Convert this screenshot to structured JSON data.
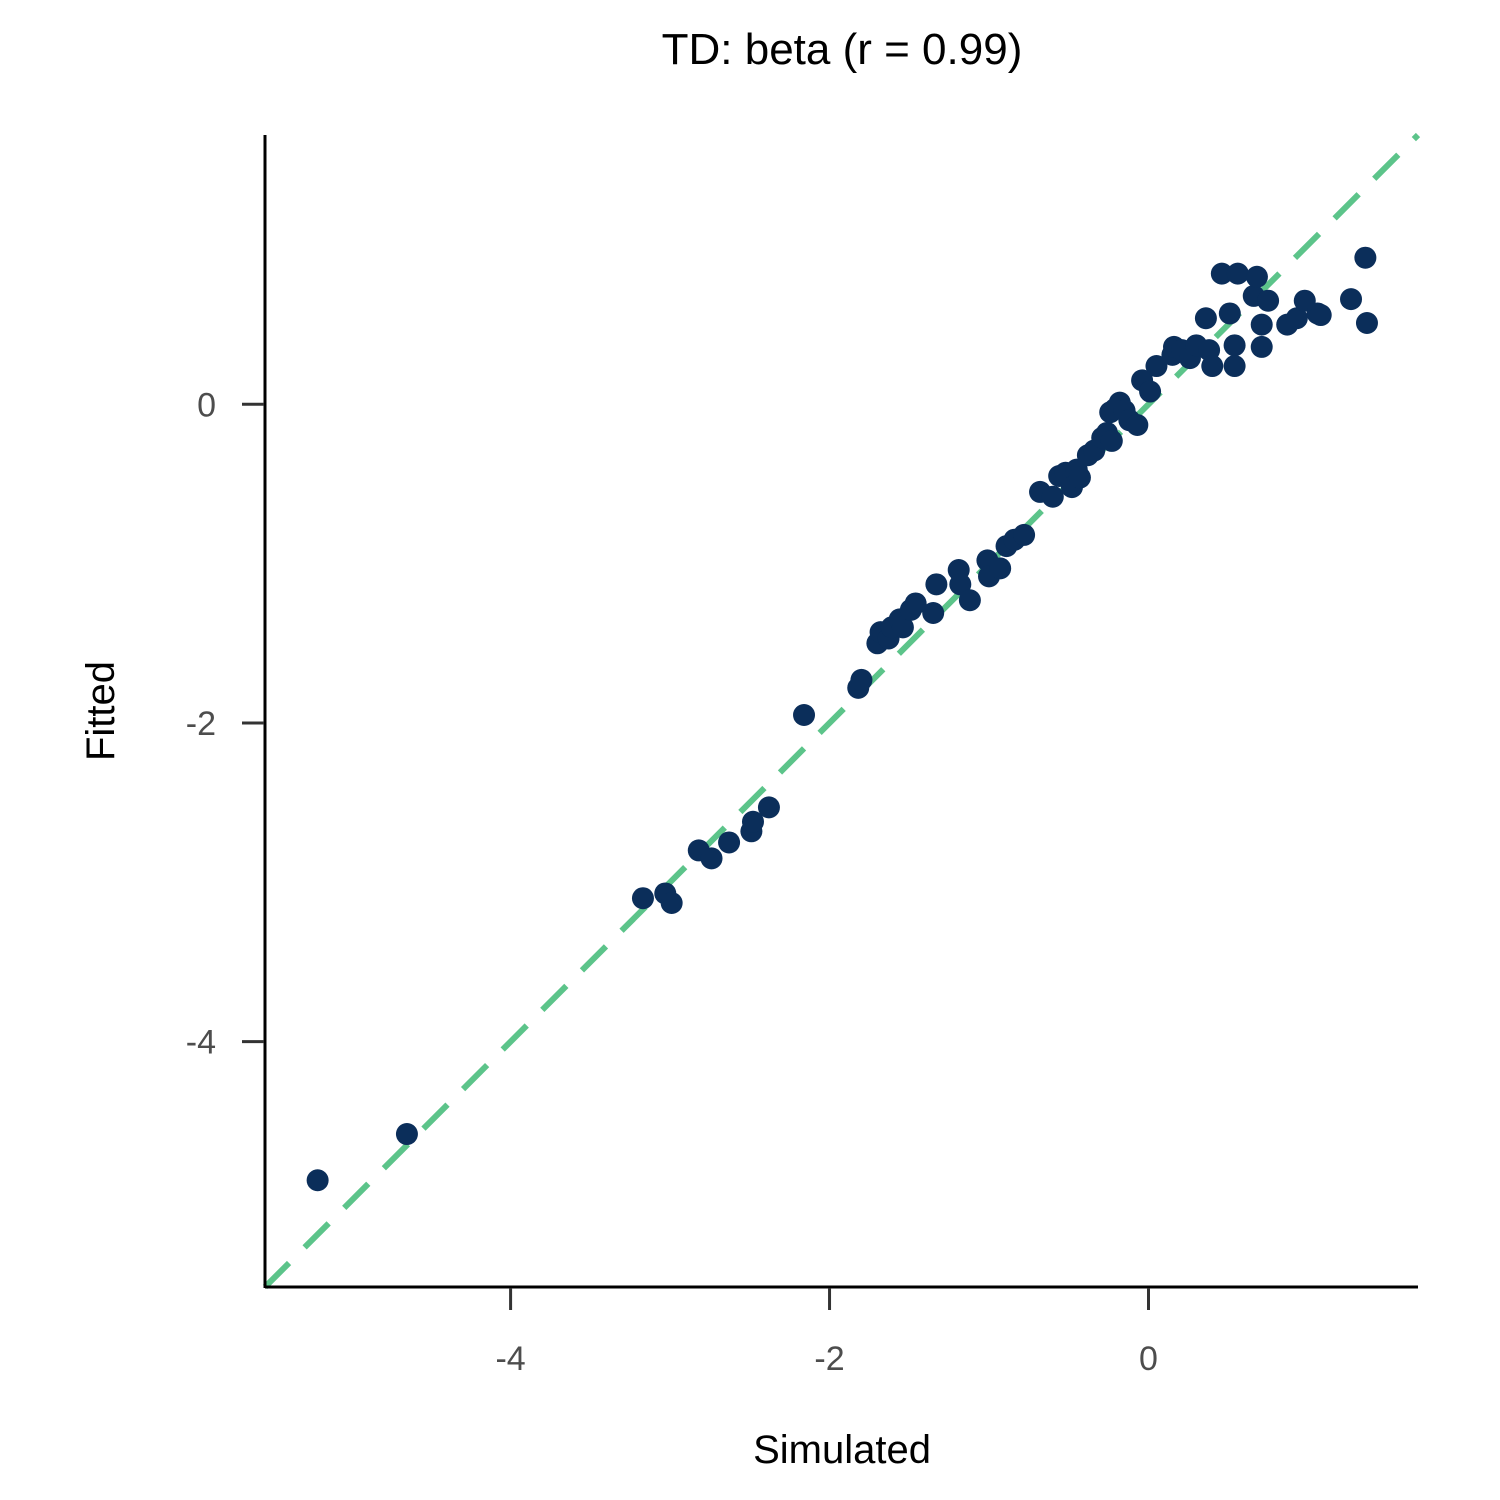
{
  "chart_data": {
    "type": "scatter",
    "title": "TD: beta (r = 0.99)",
    "xlabel": "Simulated",
    "ylabel": "Fitted",
    "xlim": [
      -5.54,
      1.69
    ],
    "ylim": [
      -5.54,
      1.69
    ],
    "xticks": [
      -4,
      -2,
      0
    ],
    "yticks": [
      -4,
      -2,
      0
    ],
    "xtick_labels": [
      "-4",
      "-2",
      "0"
    ],
    "ytick_labels": [
      "-4",
      "-2",
      "0"
    ],
    "grid": false,
    "reference_line": {
      "type": "identity",
      "style": "dashed",
      "color": "#5cc48a"
    },
    "point_color": "#0b2e5a",
    "points": [
      [
        -5.21,
        -4.87
      ],
      [
        -4.65,
        -4.58
      ],
      [
        -3.17,
        -3.1
      ],
      [
        -3.03,
        -3.07
      ],
      [
        -2.99,
        -3.13
      ],
      [
        -2.82,
        -2.8
      ],
      [
        -2.74,
        -2.85
      ],
      [
        -2.63,
        -2.75
      ],
      [
        -2.49,
        -2.68
      ],
      [
        -2.48,
        -2.62
      ],
      [
        -2.38,
        -2.53
      ],
      [
        -2.16,
        -1.95
      ],
      [
        -1.82,
        -1.78
      ],
      [
        -1.8,
        -1.73
      ],
      [
        -1.7,
        -1.5
      ],
      [
        -1.68,
        -1.43
      ],
      [
        -1.63,
        -1.47
      ],
      [
        -1.61,
        -1.4
      ],
      [
        -1.56,
        -1.35
      ],
      [
        -1.54,
        -1.4
      ],
      [
        -1.49,
        -1.29
      ],
      [
        -1.46,
        -1.25
      ],
      [
        -1.35,
        -1.31
      ],
      [
        -1.33,
        -1.13
      ],
      [
        -1.19,
        -1.04
      ],
      [
        -1.18,
        -1.13
      ],
      [
        -1.12,
        -1.23
      ],
      [
        -1.01,
        -0.98
      ],
      [
        -1.0,
        -1.08
      ],
      [
        -0.93,
        -1.03
      ],
      [
        -0.89,
        -0.89
      ],
      [
        -0.84,
        -0.85
      ],
      [
        -0.78,
        -0.82
      ],
      [
        -0.68,
        -0.55
      ],
      [
        -0.6,
        -0.58
      ],
      [
        -0.56,
        -0.45
      ],
      [
        -0.52,
        -0.43
      ],
      [
        -0.48,
        -0.52
      ],
      [
        -0.45,
        -0.41
      ],
      [
        -0.43,
        -0.46
      ],
      [
        -0.38,
        -0.32
      ],
      [
        -0.34,
        -0.29
      ],
      [
        -0.29,
        -0.21
      ],
      [
        -0.26,
        -0.18
      ],
      [
        -0.23,
        -0.23
      ],
      [
        -0.24,
        -0.05
      ],
      [
        -0.21,
        -0.03
      ],
      [
        -0.18,
        0.01
      ],
      [
        -0.15,
        -0.04
      ],
      [
        -0.12,
        -0.1
      ],
      [
        -0.07,
        -0.13
      ],
      [
        -0.04,
        0.15
      ],
      [
        0.01,
        0.08
      ],
      [
        0.05,
        0.24
      ],
      [
        0.15,
        0.31
      ],
      [
        0.16,
        0.36
      ],
      [
        0.21,
        0.34
      ],
      [
        0.26,
        0.29
      ],
      [
        0.3,
        0.37
      ],
      [
        0.36,
        0.54
      ],
      [
        0.38,
        0.34
      ],
      [
        0.4,
        0.24
      ],
      [
        0.46,
        0.82
      ],
      [
        0.51,
        0.57
      ],
      [
        0.54,
        0.37
      ],
      [
        0.54,
        0.24
      ],
      [
        0.56,
        0.82
      ],
      [
        0.66,
        0.68
      ],
      [
        0.68,
        0.8
      ],
      [
        0.71,
        0.5
      ],
      [
        0.71,
        0.36
      ],
      [
        0.75,
        0.65
      ],
      [
        0.87,
        0.5
      ],
      [
        0.93,
        0.54
      ],
      [
        0.98,
        0.65
      ],
      [
        1.06,
        0.57
      ],
      [
        1.08,
        0.56
      ],
      [
        1.27,
        0.66
      ],
      [
        1.36,
        0.92
      ],
      [
        1.37,
        0.51
      ]
    ]
  }
}
